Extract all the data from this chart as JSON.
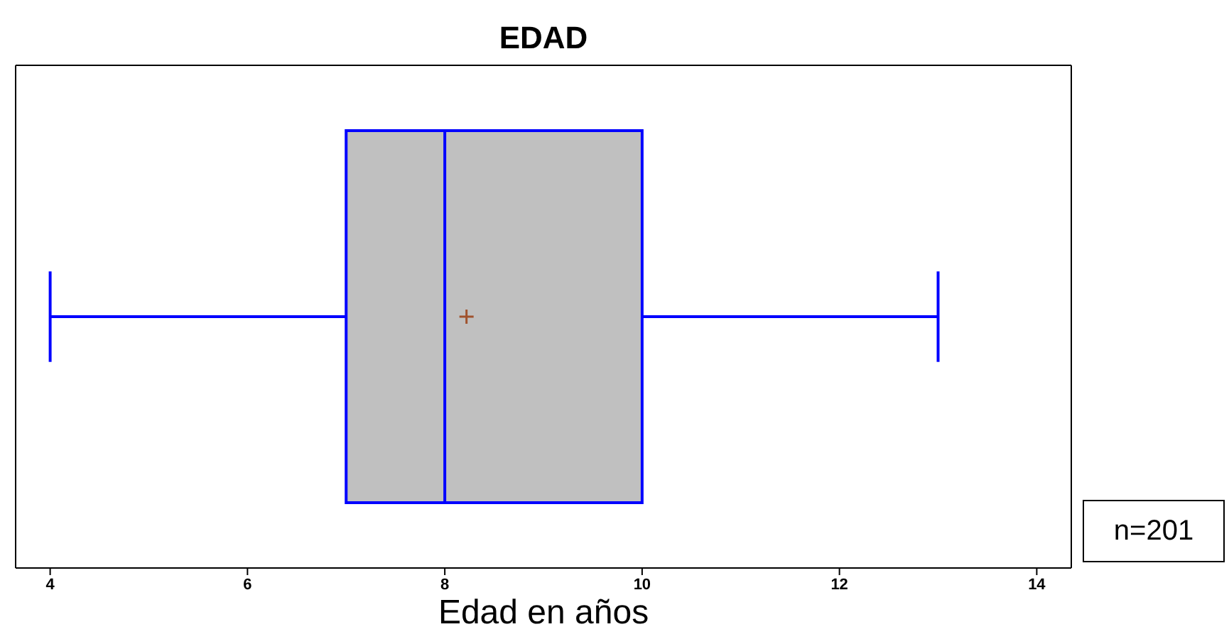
{
  "chart_data": {
    "type": "box",
    "orientation": "horizontal",
    "title": "EDAD",
    "xlabel": "Edad en años",
    "categories": [
      null
    ],
    "series": [
      {
        "color": "#0000ff",
        "boxes": [
          {
            "low": 4,
            "q1": 7,
            "median": 8,
            "q3": 10,
            "high": 13,
            "mean": 8.22
          }
        ]
      }
    ],
    "xlim": [
      3.65,
      14.35
    ],
    "xticks": [
      4,
      6,
      8,
      10,
      12,
      14
    ],
    "annotations": [
      "n=201"
    ]
  }
}
